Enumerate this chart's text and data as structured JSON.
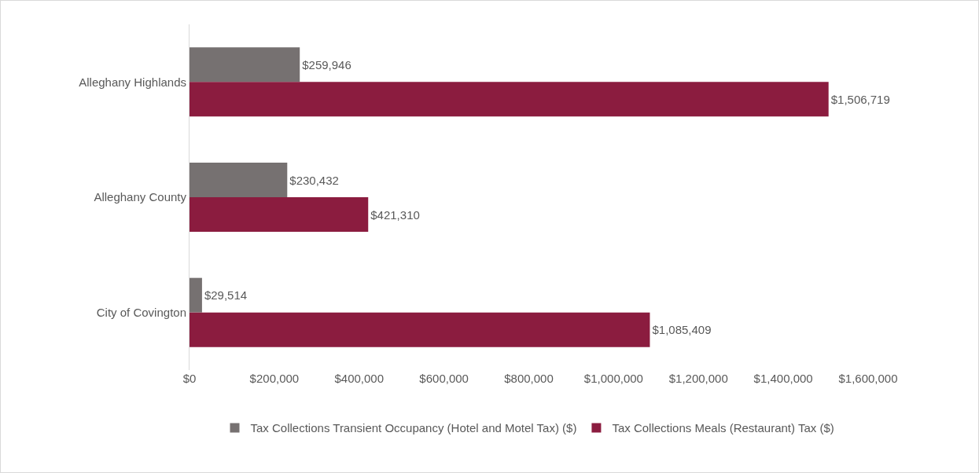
{
  "chart_data": {
    "type": "bar",
    "orientation": "horizontal",
    "categories": [
      "Alleghany Highlands",
      "Alleghany County",
      "City of Covington"
    ],
    "series": [
      {
        "name": "Tax Collections Transient Occupancy (Hotel and Motel Tax) ($)",
        "color": "#767171",
        "values": [
          259946,
          230432,
          29514
        ],
        "value_labels": [
          "$259,946",
          "$230,432",
          "$29,514"
        ]
      },
      {
        "name": "Tax Collections Meals (Restaurant) Tax ($)",
        "color": "#8b1c3f",
        "values": [
          1506719,
          421310,
          1085409
        ],
        "value_labels": [
          "$1,506,719",
          "$421,310",
          "$1,085,409"
        ]
      }
    ],
    "xlim": [
      0,
      1600000
    ],
    "xticks": [
      {
        "value": 0,
        "label": "$0"
      },
      {
        "value": 200000,
        "label": "$200,000"
      },
      {
        "value": 400000,
        "label": "$400,000"
      },
      {
        "value": 600000,
        "label": "$600,000"
      },
      {
        "value": 800000,
        "label": "$800,000"
      },
      {
        "value": 1000000,
        "label": "$1,000,000"
      },
      {
        "value": 1200000,
        "label": "$1,200,000"
      },
      {
        "value": 1400000,
        "label": "$1,400,000"
      },
      {
        "value": 1600000,
        "label": "$1,600,000"
      }
    ],
    "grid": false,
    "legend": "bottom"
  }
}
